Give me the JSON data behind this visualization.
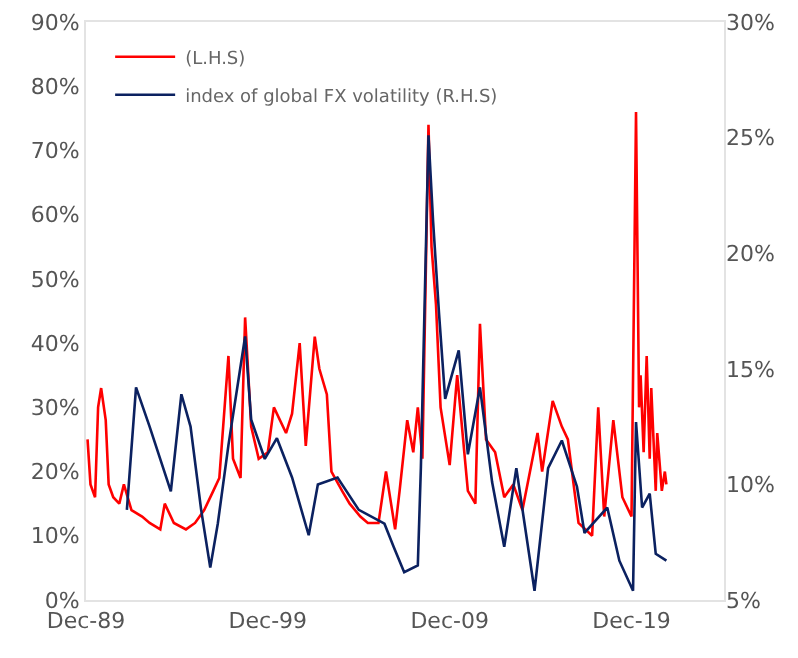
{
  "chart_data": {
    "type": "line",
    "series": [
      {
        "name": "(L.H.S)",
        "color": "#ff0000",
        "axis": "y",
        "x": [
          "1990-01",
          "1990-03",
          "1990-06",
          "1990-08",
          "1990-10",
          "1991-01",
          "1991-03",
          "1991-06",
          "1991-10",
          "1992-01",
          "1992-06",
          "1993-01",
          "1993-06",
          "1994-01",
          "1994-04",
          "1994-10",
          "1995-06",
          "1995-12",
          "1996-06",
          "1996-12",
          "1997-04",
          "1997-10",
          "1998-01",
          "1998-06",
          "1998-09",
          "1999-01",
          "1999-06",
          "1999-12",
          "2000-04",
          "2000-12",
          "2001-04",
          "2001-09",
          "2002-01",
          "2002-07",
          "2002-10",
          "2003-03",
          "2003-06",
          "2004-01",
          "2004-06",
          "2005-01",
          "2005-06",
          "2006-01",
          "2006-06",
          "2006-12",
          "2007-03",
          "2007-08",
          "2007-12",
          "2008-03",
          "2008-06",
          "2008-10",
          "2008-12",
          "2009-03",
          "2009-06",
          "2009-12",
          "2010-05",
          "2010-12",
          "2011-05",
          "2011-08",
          "2011-12",
          "2012-06",
          "2012-12",
          "2013-06",
          "2013-12",
          "2014-10",
          "2015-01",
          "2015-08",
          "2016-02",
          "2016-06",
          "2017-01",
          "2017-10",
          "2018-02",
          "2018-06",
          "2018-12",
          "2019-06",
          "2019-12",
          "2020-03",
          "2020-05",
          "2020-06",
          "2020-08",
          "2020-10",
          "2020-12",
          "2021-01",
          "2021-04",
          "2021-05",
          "2021-08",
          "2021-10",
          "2021-11"
        ],
        "values": [
          25,
          18,
          16,
          30,
          33,
          28,
          18,
          16,
          15,
          18,
          14,
          13,
          12,
          11,
          15,
          12,
          11,
          12,
          14,
          17,
          19,
          38,
          22,
          19,
          44,
          27,
          22,
          23,
          30,
          26,
          29,
          40,
          24,
          41,
          36,
          32,
          20,
          17,
          15,
          13,
          12,
          12,
          20,
          11,
          17,
          28,
          23,
          30,
          22,
          74,
          55,
          46,
          30,
          21,
          35,
          17,
          15,
          43,
          25,
          23,
          16,
          18,
          14,
          26,
          20,
          31,
          27,
          25,
          12,
          10,
          30,
          13,
          28,
          16,
          13,
          76,
          30,
          35,
          23,
          38,
          22,
          33,
          17,
          26,
          17,
          20,
          18
        ]
      },
      {
        "name": "index of global FX volatility (R.H.S)",
        "color": "#0b2160",
        "axis": "y2",
        "x": [
          "1992-03",
          "1992-09",
          "1993-06",
          "1994-08",
          "1995-03",
          "1995-09",
          "1996-04",
          "1996-10",
          "1997-03",
          "1997-10",
          "1998-09",
          "1999-01",
          "1999-10",
          "2000-06",
          "2001-04",
          "2002-03",
          "2002-09",
          "2003-10",
          "2004-12",
          "2006-05",
          "2006-11",
          "2007-06",
          "2008-03",
          "2008-05",
          "2008-10",
          "2009-01",
          "2009-05",
          "2009-09",
          "2010-06",
          "2010-12",
          "2011-08",
          "2012-04",
          "2012-12",
          "2013-08",
          "2014-08",
          "2015-05",
          "2016-02",
          "2016-12",
          "2017-05",
          "2018-08",
          "2019-04",
          "2020-01",
          "2020-03",
          "2020-07",
          "2020-12",
          "2021-04",
          "2021-11"
        ],
        "values": [
          8.9,
          14.2,
          12.5,
          9.7,
          13.9,
          12.5,
          8.9,
          6.4,
          8.3,
          11.7,
          16.4,
          12.8,
          11.1,
          12,
          10.3,
          7.8,
          10,
          10.3,
          8.9,
          8.3,
          7.3,
          6.2,
          6.5,
          10.7,
          25.1,
          21.4,
          17.4,
          13.7,
          15.8,
          11.3,
          14.2,
          10.1,
          7.3,
          10.7,
          5.4,
          10.7,
          11.9,
          9.9,
          7.9,
          9,
          6.7,
          5.4,
          12.7,
          9,
          9.6,
          7,
          6.7
        ]
      }
    ],
    "xlim": [
      "1989-12",
      "2025-01"
    ],
    "xticks": [
      {
        "value": "1989-12",
        "label": "Dec-89"
      },
      {
        "value": "1999-12",
        "label": "Dec-99"
      },
      {
        "value": "2009-12",
        "label": "Dec-09"
      },
      {
        "value": "2019-12",
        "label": "Dec-19"
      }
    ],
    "ylim": [
      0,
      90
    ],
    "yticks": [
      {
        "value": 0,
        "label": "0%"
      },
      {
        "value": 10,
        "label": "10%"
      },
      {
        "value": 20,
        "label": "20%"
      },
      {
        "value": 30,
        "label": "30%"
      },
      {
        "value": 40,
        "label": "40%"
      },
      {
        "value": 50,
        "label": "50%"
      },
      {
        "value": 60,
        "label": "60%"
      },
      {
        "value": 70,
        "label": "70%"
      },
      {
        "value": 80,
        "label": "80%"
      },
      {
        "value": 90,
        "label": "90%"
      }
    ],
    "y2lim": [
      5,
      30
    ],
    "y2ticks": [
      {
        "value": 5,
        "label": "5%"
      },
      {
        "value": 10,
        "label": "10%"
      },
      {
        "value": 15,
        "label": "15%"
      },
      {
        "value": 20,
        "label": "20%"
      },
      {
        "value": 25,
        "label": "25%"
      },
      {
        "value": 30,
        "label": "30%"
      }
    ],
    "grid": false,
    "legend": "top left",
    "marker": "none",
    "line_style": "solid"
  }
}
